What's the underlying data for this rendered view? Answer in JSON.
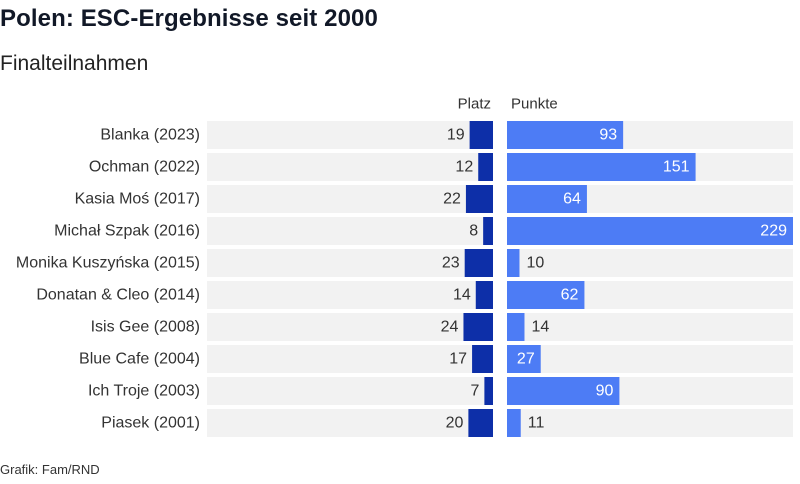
{
  "header": {
    "title": "Polen: ESC-Ergebnisse seit 2000",
    "subtitle": "Finalteilnahmen"
  },
  "footer": {
    "source": "Grafik: Fam/RND"
  },
  "colors": {
    "rank_bar": "#0d2fa8",
    "points_bar": "#4d7cf5",
    "row_bg": "#f2f2f2",
    "text": "#333333",
    "label_inside": "#ffffff"
  },
  "chart_data": {
    "type": "bar",
    "orientation": "horizontal",
    "columns": [
      "Platz",
      "Punkte"
    ],
    "categories": [
      "Blanka (2023)",
      "Ochman (2022)",
      "Kasia Moś (2017)",
      "Michał Szpak (2016)",
      "Monika Kuszyńska (2015)",
      "Donatan & Cleo (2014)",
      "Isis Gee (2008)",
      "Blue Cafe (2004)",
      "Ich Troje (2003)",
      "Piasek (2001)"
    ],
    "series": [
      {
        "name": "Platz",
        "values": [
          19,
          12,
          22,
          8,
          23,
          14,
          24,
          17,
          7,
          20
        ]
      },
      {
        "name": "Punkte",
        "values": [
          93,
          151,
          64,
          229,
          10,
          62,
          14,
          27,
          90,
          11
        ]
      }
    ],
    "platz_max": 26,
    "punkte_max": 229
  }
}
